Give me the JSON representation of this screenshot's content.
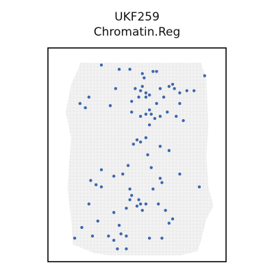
{
  "chart_data": {
    "type": "scatter",
    "title": "UKF259",
    "subtitle": "Chromatin.Reg",
    "xlabel": "",
    "ylabel": "",
    "xlim": [
      0,
      1
    ],
    "ylim": [
      0,
      1
    ],
    "grid": false,
    "legend": "none",
    "background_color": "#ececec",
    "point_color": "#3b67ad",
    "frame_color": "#000000",
    "tissue_outline": [
      [
        0.18,
        0.93
      ],
      [
        0.86,
        0.93
      ],
      [
        0.89,
        0.85
      ],
      [
        0.9,
        0.64
      ],
      [
        0.89,
        0.5
      ],
      [
        0.9,
        0.35
      ],
      [
        0.93,
        0.26
      ],
      [
        0.89,
        0.2
      ],
      [
        0.86,
        0.1
      ],
      [
        0.84,
        0.05
      ],
      [
        0.75,
        0.03
      ],
      [
        0.34,
        0.03
      ],
      [
        0.26,
        0.04
      ],
      [
        0.14,
        0.08
      ],
      [
        0.13,
        0.2
      ],
      [
        0.11,
        0.34
      ],
      [
        0.12,
        0.47
      ],
      [
        0.13,
        0.58
      ],
      [
        0.1,
        0.7
      ],
      [
        0.13,
        0.83
      ],
      [
        0.17,
        0.9
      ]
    ],
    "points": [
      [
        0.3,
        0.92
      ],
      [
        0.4,
        0.9
      ],
      [
        0.46,
        0.9
      ],
      [
        0.59,
        0.89
      ],
      [
        0.61,
        0.89
      ],
      [
        0.53,
        0.88
      ],
      [
        0.54,
        0.86
      ],
      [
        0.88,
        0.87
      ],
      [
        0.68,
        0.82
      ],
      [
        0.7,
        0.83
      ],
      [
        0.53,
        0.82
      ],
      [
        0.49,
        0.81
      ],
      [
        0.52,
        0.8
      ],
      [
        0.55,
        0.79
      ],
      [
        0.57,
        0.78
      ],
      [
        0.51,
        0.77
      ],
      [
        0.55,
        0.77
      ],
      [
        0.38,
        0.81
      ],
      [
        0.71,
        0.81
      ],
      [
        0.63,
        0.81
      ],
      [
        0.74,
        0.79
      ],
      [
        0.78,
        0.8
      ],
      [
        0.82,
        0.8
      ],
      [
        0.23,
        0.77
      ],
      [
        0.18,
        0.74
      ],
      [
        0.21,
        0.72
      ],
      [
        0.35,
        0.73
      ],
      [
        0.47,
        0.75
      ],
      [
        0.61,
        0.74
      ],
      [
        0.65,
        0.77
      ],
      [
        0.74,
        0.74
      ],
      [
        0.57,
        0.71
      ],
      [
        0.55,
        0.69
      ],
      [
        0.58,
        0.69
      ],
      [
        0.6,
        0.67
      ],
      [
        0.63,
        0.68
      ],
      [
        0.67,
        0.7
      ],
      [
        0.72,
        0.68
      ],
      [
        0.76,
        0.66
      ],
      [
        0.57,
        0.64
      ],
      [
        0.47,
        0.7
      ],
      [
        0.52,
        0.68
      ],
      [
        0.55,
        0.58
      ],
      [
        0.52,
        0.56
      ],
      [
        0.5,
        0.57
      ],
      [
        0.48,
        0.55
      ],
      [
        0.63,
        0.54
      ],
      [
        0.68,
        0.52
      ],
      [
        0.56,
        0.5
      ],
      [
        0.45,
        0.45
      ],
      [
        0.3,
        0.43
      ],
      [
        0.58,
        0.44
      ],
      [
        0.37,
        0.4
      ],
      [
        0.42,
        0.41
      ],
      [
        0.63,
        0.39
      ],
      [
        0.74,
        0.41
      ],
      [
        0.24,
        0.38
      ],
      [
        0.27,
        0.36
      ],
      [
        0.3,
        0.35
      ],
      [
        0.46,
        0.34
      ],
      [
        0.59,
        0.34
      ],
      [
        0.64,
        0.37
      ],
      [
        0.85,
        0.35
      ],
      [
        0.47,
        0.31
      ],
      [
        0.46,
        0.29
      ],
      [
        0.51,
        0.29
      ],
      [
        0.52,
        0.27
      ],
      [
        0.5,
        0.26
      ],
      [
        0.53,
        0.24
      ],
      [
        0.55,
        0.27
      ],
      [
        0.23,
        0.27
      ],
      [
        0.37,
        0.23
      ],
      [
        0.44,
        0.25
      ],
      [
        0.62,
        0.27
      ],
      [
        0.66,
        0.24
      ],
      [
        0.68,
        0.18
      ],
      [
        0.7,
        0.2
      ],
      [
        0.28,
        0.19
      ],
      [
        0.4,
        0.17
      ],
      [
        0.19,
        0.16
      ],
      [
        0.44,
        0.12
      ],
      [
        0.25,
        0.12
      ],
      [
        0.37,
        0.1
      ],
      [
        0.57,
        0.11
      ],
      [
        0.64,
        0.11
      ],
      [
        0.15,
        0.11
      ],
      [
        0.39,
        0.06
      ],
      [
        0.44,
        0.06
      ],
      [
        0.41,
        0.13
      ],
      [
        0.34,
        0.12
      ]
    ]
  }
}
